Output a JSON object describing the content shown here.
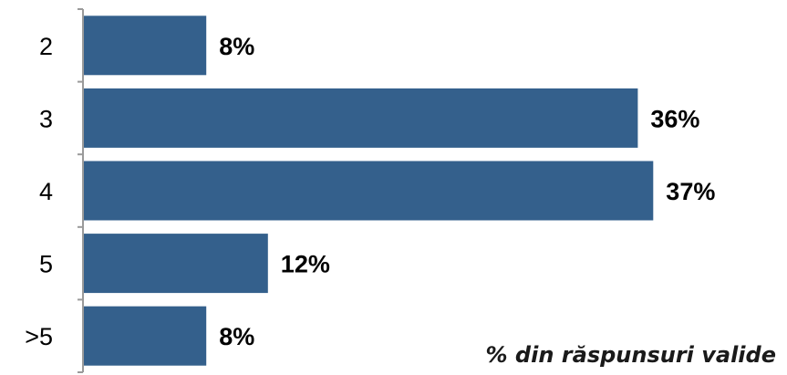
{
  "chart_data": {
    "type": "bar",
    "orientation": "horizontal",
    "categories": [
      "2",
      "3",
      "4",
      "5",
      ">5"
    ],
    "values": [
      8,
      36,
      37,
      12,
      8
    ],
    "value_labels": [
      "8%",
      "36%",
      "37%",
      "12%",
      "8%"
    ],
    "title": "",
    "xlabel": "",
    "ylabel": "",
    "grid": false,
    "bar_color": "#34608C",
    "axis_color": "#9a9a9a",
    "annotation": "% din răspunsuri valide"
  }
}
